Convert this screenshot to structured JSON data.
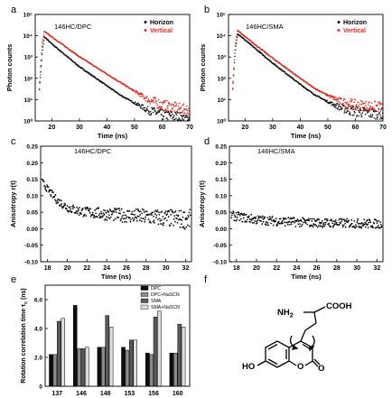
{
  "panels": {
    "a": {
      "letter": "a",
      "label": "146HC/DPC"
    },
    "b": {
      "letter": "b",
      "label": "146HC/SMA"
    },
    "c": {
      "letter": "c",
      "label": "146HC/DPC"
    },
    "d": {
      "letter": "d",
      "label": "146HC/SMA"
    },
    "e": {
      "letter": "e"
    },
    "f": {
      "letter": "f"
    }
  },
  "molecule": {
    "nh2": "NH",
    "nh2_sub": "2",
    "cooh": "COOH",
    "ho": "HO",
    "o_ring": "O",
    "o_carbonyl": "O"
  },
  "chart_data": [
    {
      "id": "a",
      "type": "scatter",
      "title": "146HC/DPC",
      "xlabel": "Time (ns)",
      "ylabel": "Photon counts",
      "xlim": [
        14,
        70
      ],
      "ylim_log10": [
        0,
        5
      ],
      "yscale": "log",
      "xticks": [
        20,
        30,
        40,
        50,
        60,
        70
      ],
      "yticks": [
        "10⁰",
        "10¹",
        "10²",
        "10³",
        "10⁴",
        "10⁵"
      ],
      "legend": "top-right",
      "series": [
        {
          "name": "Horizon",
          "color": "#111111",
          "points": [
            [
              15.5,
              1.5
            ],
            [
              16.5,
              3.2
            ],
            [
              17.3,
              3.95
            ],
            [
              20,
              3.62
            ],
            [
              30,
              2.55
            ],
            [
              40,
              1.65
            ],
            [
              45,
              1.2
            ],
            [
              50,
              0.85
            ],
            [
              55,
              0.5
            ],
            [
              60,
              0.3
            ],
            [
              70,
              0.1
            ]
          ]
        },
        {
          "name": "Vertical",
          "color": "#e32a1f",
          "points": [
            [
              15.5,
              1.5
            ],
            [
              16.5,
              3.6
            ],
            [
              17.3,
              4.2
            ],
            [
              20,
              3.95
            ],
            [
              30,
              3.02
            ],
            [
              40,
              2.2
            ],
            [
              45,
              1.8
            ],
            [
              50,
              1.4
            ],
            [
              55,
              1.0
            ],
            [
              60,
              0.75
            ],
            [
              70,
              0.5
            ]
          ]
        }
      ]
    },
    {
      "id": "b",
      "type": "scatter",
      "title": "146HC/SMA",
      "xlabel": "Time (ns)",
      "ylabel": "Photon counts",
      "xlim": [
        14,
        70
      ],
      "ylim_log10": [
        0,
        5
      ],
      "yscale": "log",
      "xticks": [
        20,
        30,
        40,
        50,
        60,
        70
      ],
      "yticks": [
        "10⁰",
        "10¹",
        "10²",
        "10³",
        "10⁴",
        "10⁵"
      ],
      "legend": "top-right",
      "series": [
        {
          "name": "Horizon",
          "color": "#111111",
          "points": [
            [
              15.5,
              1.5
            ],
            [
              16.5,
              3.4
            ],
            [
              17.3,
              4.1
            ],
            [
              20,
              3.8
            ],
            [
              30,
              2.72
            ],
            [
              40,
              1.72
            ],
            [
              45,
              1.25
            ],
            [
              50,
              0.9
            ],
            [
              55,
              0.6
            ],
            [
              60,
              0.45
            ],
            [
              70,
              0.3
            ]
          ]
        },
        {
          "name": "Vertical",
          "color": "#e32a1f",
          "points": [
            [
              15.5,
              1.5
            ],
            [
              16.5,
              3.6
            ],
            [
              17.3,
              4.25
            ],
            [
              20,
              3.95
            ],
            [
              30,
              2.95
            ],
            [
              40,
              2.0
            ],
            [
              45,
              1.55
            ],
            [
              50,
              1.2
            ],
            [
              55,
              0.9
            ],
            [
              60,
              0.75
            ],
            [
              70,
              0.65
            ]
          ]
        }
      ]
    },
    {
      "id": "c",
      "type": "scatter",
      "title": "146HC/DPC",
      "xlabel": "Time (ns)",
      "ylabel": "Anisotropy r(t)",
      "xlim": [
        17.3,
        32.6
      ],
      "ylim": [
        -0.1,
        0.25
      ],
      "xticks": [
        18,
        20,
        22,
        24,
        26,
        28,
        30,
        32
      ],
      "yticks": [
        "-0.10",
        "-0.05",
        "0.00",
        "0.05",
        "0.10",
        "0.15",
        "0.20",
        "0.25"
      ],
      "series": [
        {
          "name": "",
          "color": "#111111",
          "points": [
            [
              17.5,
              0.14
            ],
            [
              18,
              0.12
            ],
            [
              19,
              0.085
            ],
            [
              20,
              0.065
            ],
            [
              21,
              0.055
            ],
            [
              22,
              0.05
            ],
            [
              24,
              0.044
            ],
            [
              26,
              0.04
            ],
            [
              28,
              0.036
            ],
            [
              30,
              0.032
            ],
            [
              32,
              0.028
            ]
          ]
        }
      ]
    },
    {
      "id": "d",
      "type": "scatter",
      "title": "146HC/SMA",
      "xlabel": "Time (ns)",
      "ylabel": "Anisotropy r(t)",
      "xlim": [
        17.3,
        32.6
      ],
      "ylim": [
        -0.1,
        0.25
      ],
      "xticks": [
        18,
        20,
        22,
        24,
        26,
        28,
        30,
        32
      ],
      "yticks": [
        "-0.10",
        "-0.05",
        "0.00",
        "0.05",
        "0.10",
        "0.15",
        "0.20",
        "0.25"
      ],
      "series": [
        {
          "name": "",
          "color": "#111111",
          "points": [
            [
              17.5,
              0.04
            ],
            [
              20,
              0.027
            ],
            [
              22,
              0.023
            ],
            [
              24,
              0.02
            ],
            [
              26,
              0.018
            ],
            [
              28,
              0.017
            ],
            [
              30,
              0.016
            ],
            [
              32,
              0.015
            ]
          ]
        }
      ]
    },
    {
      "id": "e",
      "type": "bar",
      "ylabel": "Rotation correlation time",
      "ylabel_tau": "τ",
      "ylabel_sub": "c",
      "ylabel_unit": " (ns)",
      "categories": [
        "137",
        "146",
        "148",
        "153",
        "156",
        "160"
      ],
      "ylim": [
        0,
        7
      ],
      "yticks": [
        "0",
        "2.0",
        "4.0",
        "6.0"
      ],
      "legend": "top-right",
      "series": [
        {
          "name": "DPC",
          "color": "#0d0d0d",
          "values": [
            2.2,
            5.6,
            2.7,
            2.7,
            2.3,
            2.3
          ]
        },
        {
          "name": "DPC+NaSCN",
          "color": "#8a8a8a",
          "values": [
            2.2,
            2.6,
            2.7,
            2.5,
            2.2,
            2.3
          ]
        },
        {
          "name": "SMA",
          "color": "#5a5a5a",
          "values": [
            4.5,
            2.6,
            4.9,
            3.2,
            4.8,
            4.3
          ]
        },
        {
          "name": "SMA+NaSCN",
          "color": "#dcdcdc",
          "values": [
            4.7,
            2.7,
            4.1,
            3.2,
            5.2,
            4.1
          ]
        }
      ]
    }
  ]
}
